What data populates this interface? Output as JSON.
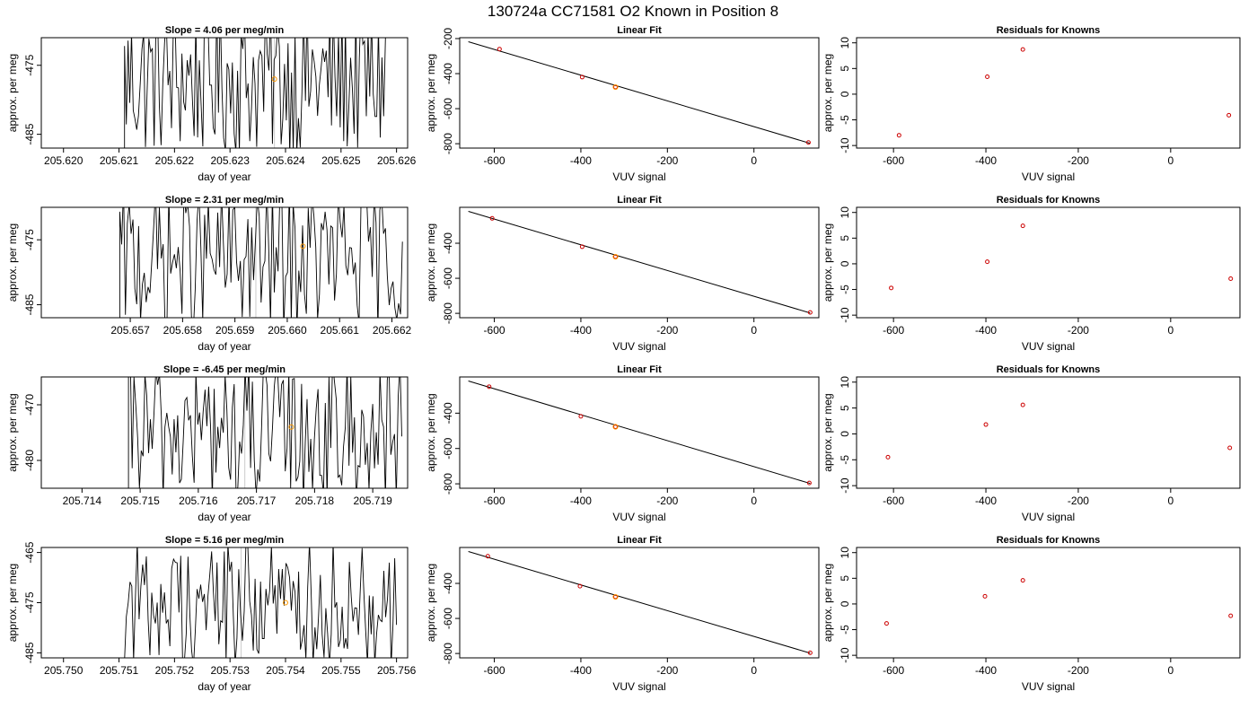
{
  "page_title": "130724a     CC71581    O2 Known in Position  8",
  "colors": {
    "trace": "#000000",
    "known_point": "#ff9900",
    "residual_point": "#cc0000",
    "fit_line": "#000000",
    "axes": "#000000",
    "highlight_line": "#cccccc"
  },
  "chart_data": [
    {
      "row": 0,
      "type": "line",
      "title": "Slope =  4.06  per meg/min",
      "xlabel": "day of year",
      "ylabel": "approx. per meg",
      "xlim": [
        205.6196,
        205.6262
      ],
      "ylim": [
        -487,
        -471
      ],
      "x_ticks": [
        "205.620",
        "205.621",
        "205.622",
        "205.623",
        "205.624",
        "205.625",
        "205.626"
      ],
      "x_tick_values": [
        205.62,
        205.621,
        205.622,
        205.623,
        205.624,
        205.625,
        205.626
      ],
      "y_ticks": [
        "-475",
        "-485"
      ],
      "y_tick_values": [
        -475,
        -485
      ],
      "trace_x_range": [
        205.6211,
        205.6258
      ],
      "trace_base": -477,
      "trace_amp": 7,
      "known_point": {
        "x": 205.6238,
        "y": -477.0
      },
      "shaded_x": [
        205.6238
      ]
    },
    {
      "row": 0,
      "type": "scatter",
      "title": "Linear Fit",
      "xlabel": "VUV signal",
      "ylabel": "approx. per meg",
      "xlim": [
        -680,
        150
      ],
      "ylim": [
        -825,
        -195
      ],
      "x_ticks": [
        "-600",
        "-400",
        "-200",
        "0"
      ],
      "x_tick_values": [
        -600,
        -400,
        -200,
        0
      ],
      "y_ticks": [
        "-200",
        "-400",
        "-600",
        "-800"
      ],
      "y_tick_values": [
        -200,
        -400,
        -600,
        -800
      ],
      "fit_line": {
        "x": [
          -660,
          130
        ],
        "y": [
          -218,
          -798
        ]
      },
      "points": {
        "x": [
          -588,
          -397,
          -320,
          126
        ],
        "y": [
          -260,
          -420,
          -477,
          -793
        ]
      },
      "known_point": {
        "x": -320,
        "y": -477
      }
    },
    {
      "row": 0,
      "type": "scatter",
      "title": "Residuals for Knowns",
      "xlabel": "VUV signal",
      "ylabel": "approx. per meg",
      "xlim": [
        -680,
        150
      ],
      "ylim": [
        -10.5,
        11
      ],
      "x_ticks": [
        "-600",
        "-400",
        "-200",
        "0"
      ],
      "x_tick_values": [
        -600,
        -400,
        -200,
        0
      ],
      "y_ticks": [
        "10",
        "5",
        "0",
        "-5",
        "-10"
      ],
      "y_tick_values": [
        10,
        5,
        0,
        -5,
        -10
      ],
      "points": {
        "x": [
          -588,
          -397,
          -320,
          126
        ],
        "y": [
          -8.0,
          3.4,
          8.7,
          -4.1
        ]
      }
    },
    {
      "row": 1,
      "type": "line",
      "title": "Slope =  2.31  per meg/min",
      "xlabel": "day of year",
      "ylabel": "approx. per meg",
      "xlim": [
        205.6553,
        205.6623
      ],
      "ylim": [
        -487,
        -470
      ],
      "x_ticks": [
        "205.657",
        "205.658",
        "205.659",
        "205.660",
        "205.661",
        "205.662"
      ],
      "x_tick_values": [
        205.657,
        205.658,
        205.659,
        205.66,
        205.661,
        205.662
      ],
      "y_ticks": [
        "-475",
        "-485"
      ],
      "y_tick_values": [
        -475,
        -485
      ],
      "trace_x_range": [
        205.6568,
        205.6622
      ],
      "trace_base": -478,
      "trace_amp": 7,
      "known_point": {
        "x": 205.6603,
        "y": -476.0
      },
      "shaded_x": [
        205.6594
      ]
    },
    {
      "row": 1,
      "type": "scatter",
      "title": "Linear Fit",
      "xlabel": "VUV signal",
      "ylabel": "approx. per meg",
      "xlim": [
        -680,
        150
      ],
      "ylim": [
        -825,
        -195
      ],
      "x_ticks": [
        "-600",
        "-400",
        "-200",
        "0"
      ],
      "x_tick_values": [
        -600,
        -400,
        -200,
        0
      ],
      "y_ticks": [
        "-400",
        "-600",
        "-800"
      ],
      "y_tick_values": [
        -400,
        -600,
        -800
      ],
      "fit_line": {
        "x": [
          -660,
          130
        ],
        "y": [
          -218,
          -798
        ]
      },
      "points": {
        "x": [
          -605,
          -397,
          -320,
          130
        ],
        "y": [
          -258,
          -420,
          -477,
          -795
        ]
      },
      "known_point": {
        "x": -320,
        "y": -477
      }
    },
    {
      "row": 1,
      "type": "scatter",
      "title": "Residuals for Knowns",
      "xlabel": "VUV signal",
      "ylabel": "approx. per meg",
      "xlim": [
        -680,
        150
      ],
      "ylim": [
        -10.5,
        11
      ],
      "x_ticks": [
        "-600",
        "-400",
        "-200",
        "0"
      ],
      "x_tick_values": [
        -600,
        -400,
        -200,
        0
      ],
      "y_ticks": [
        "10",
        "5",
        "0",
        "-5",
        "-10"
      ],
      "y_tick_values": [
        10,
        5,
        0,
        -5,
        -10
      ],
      "points": {
        "x": [
          -605,
          -397,
          -320,
          130
        ],
        "y": [
          -4.7,
          0.4,
          7.4,
          -2.9
        ]
      }
    },
    {
      "row": 2,
      "type": "line",
      "title": "Slope =  -6.45  per meg/min",
      "xlabel": "day of year",
      "ylabel": "approx. per meg",
      "xlim": [
        205.7133,
        205.7196
      ],
      "ylim": [
        -485,
        -465
      ],
      "x_ticks": [
        "205.714",
        "205.715",
        "205.716",
        "205.717",
        "205.718",
        "205.719"
      ],
      "x_tick_values": [
        205.714,
        205.715,
        205.716,
        205.717,
        205.718,
        205.719
      ],
      "y_ticks": [
        "-470",
        "-480"
      ],
      "y_tick_values": [
        -470,
        -480
      ],
      "trace_x_range": [
        205.7148,
        205.7195
      ],
      "trace_base": -475,
      "trace_amp": 8,
      "known_point": {
        "x": 205.7176,
        "y": -474.0
      },
      "shaded_x": [
        205.7168
      ]
    },
    {
      "row": 2,
      "type": "scatter",
      "title": "Linear Fit",
      "xlabel": "VUV signal",
      "ylabel": "approx. per meg",
      "xlim": [
        -680,
        150
      ],
      "ylim": [
        -825,
        -195
      ],
      "x_ticks": [
        "-600",
        "-400",
        "-200",
        "0"
      ],
      "x_tick_values": [
        -600,
        -400,
        -200,
        0
      ],
      "y_ticks": [
        "-400",
        "-600",
        "-800"
      ],
      "y_tick_values": [
        -400,
        -600,
        -800
      ],
      "fit_line": {
        "x": [
          -660,
          130
        ],
        "y": [
          -218,
          -798
        ]
      },
      "points": {
        "x": [
          -612,
          -400,
          -320,
          128
        ],
        "y": [
          -250,
          -418,
          -477,
          -795
        ]
      },
      "known_point": {
        "x": -320,
        "y": -477
      }
    },
    {
      "row": 2,
      "type": "scatter",
      "title": "Residuals for Knowns",
      "xlabel": "VUV signal",
      "ylabel": "approx. per meg",
      "xlim": [
        -680,
        150
      ],
      "ylim": [
        -10.5,
        11
      ],
      "x_ticks": [
        "-600",
        "-400",
        "-200",
        "0"
      ],
      "x_tick_values": [
        -600,
        -400,
        -200,
        0
      ],
      "y_ticks": [
        "10",
        "5",
        "0",
        "-5",
        "-10"
      ],
      "y_tick_values": [
        10,
        5,
        0,
        -5,
        -10
      ],
      "points": {
        "x": [
          -612,
          -400,
          -320,
          128
        ],
        "y": [
          -4.5,
          1.8,
          5.6,
          -2.7
        ]
      }
    },
    {
      "row": 3,
      "type": "line",
      "title": "Slope =  5.16  per meg/min",
      "xlabel": "day of year",
      "ylabel": "approx. per meg",
      "xlim": [
        205.7496,
        205.7562
      ],
      "ylim": [
        -486,
        -464
      ],
      "x_ticks": [
        "205.750",
        "205.751",
        "205.752",
        "205.753",
        "205.754",
        "205.755",
        "205.756"
      ],
      "x_tick_values": [
        205.75,
        205.751,
        205.752,
        205.753,
        205.754,
        205.755,
        205.756
      ],
      "y_ticks": [
        "-465",
        "-475",
        "-485"
      ],
      "y_tick_values": [
        -465,
        -475,
        -485
      ],
      "trace_x_range": [
        205.7511,
        205.756
      ],
      "trace_base": -475,
      "trace_amp": 8,
      "known_point": {
        "x": 205.754,
        "y": -475.0
      },
      "shaded_x": [
        205.7532
      ]
    },
    {
      "row": 3,
      "type": "scatter",
      "title": "Linear Fit",
      "xlabel": "VUV signal",
      "ylabel": "approx. per meg",
      "xlim": [
        -680,
        150
      ],
      "ylim": [
        -825,
        -195
      ],
      "x_ticks": [
        "-600",
        "-400",
        "-200",
        "0"
      ],
      "x_tick_values": [
        -600,
        -400,
        -200,
        0
      ],
      "y_ticks": [
        "-400",
        "-600",
        "-800"
      ],
      "y_tick_values": [
        -400,
        -600,
        -800
      ],
      "fit_line": {
        "x": [
          -660,
          130
        ],
        "y": [
          -218,
          -798
        ]
      },
      "points": {
        "x": [
          -615,
          -402,
          -320,
          130
        ],
        "y": [
          -245,
          -416,
          -477,
          -796
        ]
      },
      "known_point": {
        "x": -320,
        "y": -477
      }
    },
    {
      "row": 3,
      "type": "scatter",
      "title": "Residuals for Knowns",
      "xlabel": "VUV signal",
      "ylabel": "approx. per meg",
      "xlim": [
        -680,
        150
      ],
      "ylim": [
        -10.5,
        11
      ],
      "x_ticks": [
        "-600",
        "-400",
        "-200",
        "0"
      ],
      "x_tick_values": [
        -600,
        -400,
        -200,
        0
      ],
      "y_ticks": [
        "10",
        "5",
        "0",
        "-5",
        "-10"
      ],
      "y_tick_values": [
        10,
        5,
        0,
        -5,
        -10
      ],
      "points": {
        "x": [
          -615,
          -402,
          -320,
          130
        ],
        "y": [
          -3.8,
          1.5,
          4.6,
          -2.3
        ]
      }
    }
  ]
}
